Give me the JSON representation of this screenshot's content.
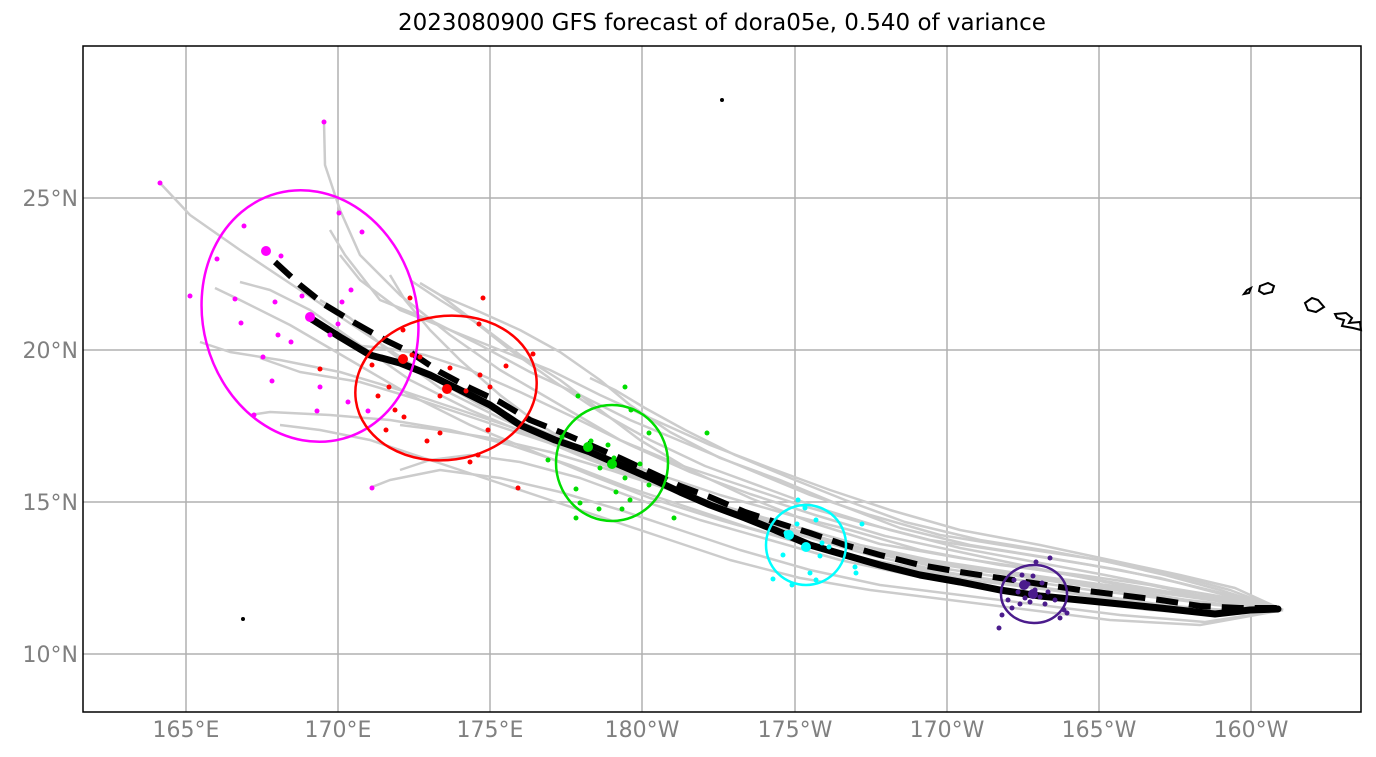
{
  "title": "2023080900 GFS forecast of dora05e, 0.540 of variance",
  "map": {
    "x_ticks": [
      "165°E",
      "170°E",
      "175°E",
      "180°W",
      "175°W",
      "170°W",
      "165°W",
      "160°W"
    ],
    "y_ticks": [
      "25°N",
      "20°N",
      "15°N",
      "10°N"
    ],
    "colors": {
      "ensemble": "#cccccc",
      "mean_track": "#000000",
      "pc_track": "#000000",
      "lead_colors": [
        "#ff00ff",
        "#ff0000",
        "#00dd00",
        "#00ffff",
        "#4b1c8c"
      ]
    }
  }
}
